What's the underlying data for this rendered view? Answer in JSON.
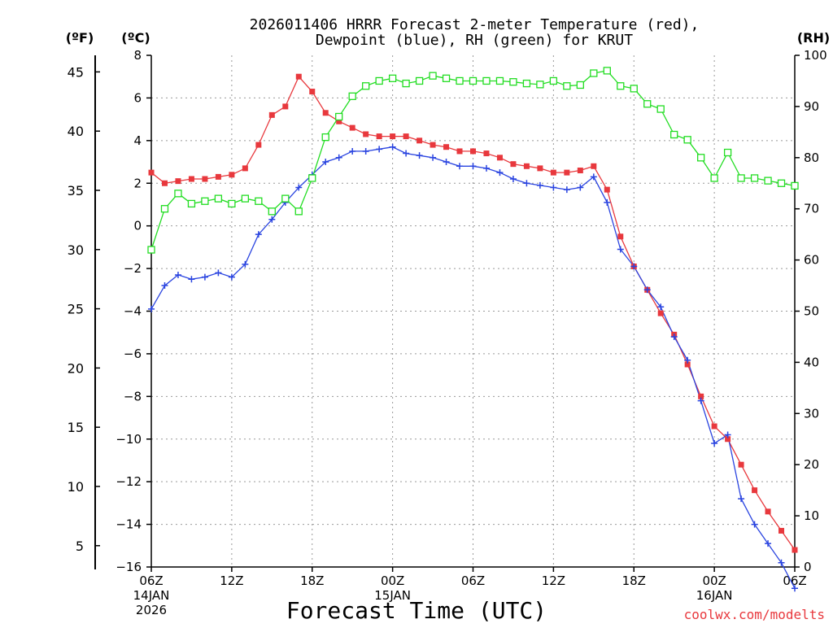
{
  "chart_data": {
    "type": "line",
    "title_line1": "2026011406 HRRR Forecast 2-meter Temperature (red),",
    "title_line2": "Dewpoint (blue), RH (green) for KRUT",
    "xlabel": "Forecast Time (UTC)",
    "credit": "coolwx.com/modelts",
    "axis_unit_f": "(ºF)",
    "axis_unit_c": "(ºC)",
    "axis_unit_rh": "(RH)",
    "x_ticks": [
      "06Z",
      "12Z",
      "18Z",
      "00Z",
      "06Z",
      "12Z",
      "18Z",
      "00Z",
      "06Z"
    ],
    "x_tick_hours": [
      0,
      6,
      12,
      18,
      24,
      30,
      36,
      42,
      48
    ],
    "date_labels": [
      {
        "hour": 0,
        "lines": [
          "14JAN",
          "2026"
        ]
      },
      {
        "hour": 18,
        "lines": [
          "15JAN"
        ]
      },
      {
        "hour": 42,
        "lines": [
          "16JAN"
        ]
      }
    ],
    "xlim": [
      0,
      48
    ],
    "ylim_c": [
      -16,
      8
    ],
    "ylim_rh": [
      0,
      100
    ],
    "yticks_c": [
      8,
      6,
      4,
      2,
      0,
      -2,
      -4,
      -6,
      -8,
      -10,
      -12,
      -14,
      -16
    ],
    "yticks_rh": [
      100,
      90,
      80,
      70,
      60,
      50,
      40,
      30,
      20,
      10,
      0
    ],
    "yticks_f": [
      45,
      40,
      35,
      30,
      25,
      20,
      15,
      10,
      5
    ],
    "series": [
      {
        "name": "Temperature",
        "unit": "C",
        "color": "#e8383d",
        "marker": "filled-square",
        "x": [
          0,
          1,
          2,
          3,
          4,
          5,
          6,
          7,
          8,
          9,
          10,
          11,
          12,
          13,
          14,
          15,
          16,
          17,
          18,
          19,
          20,
          21,
          22,
          23,
          24,
          25,
          26,
          27,
          28,
          29,
          30,
          31,
          32,
          33,
          34,
          35,
          36,
          37,
          38,
          39,
          40,
          41,
          42,
          43,
          44,
          45,
          46,
          47,
          48
        ],
        "values": [
          2.5,
          2.0,
          2.1,
          2.2,
          2.2,
          2.3,
          2.4,
          2.7,
          3.8,
          5.2,
          5.6,
          7.0,
          6.3,
          5.3,
          4.9,
          4.6,
          4.3,
          4.2,
          4.2,
          4.2,
          4.0,
          3.8,
          3.7,
          3.5,
          3.5,
          3.4,
          3.2,
          2.9,
          2.8,
          2.7,
          2.5,
          2.5,
          2.6,
          2.8,
          1.7,
          -0.5,
          -1.9,
          -3.0,
          -4.1,
          -5.1,
          -6.5,
          -8.0,
          -9.4,
          -10.0,
          -11.2,
          -12.4,
          -13.4,
          -14.3,
          -15.2
        ]
      },
      {
        "name": "Dewpoint",
        "unit": "C",
        "color": "#2a44e0",
        "marker": "plus",
        "x": [
          0,
          1,
          2,
          3,
          4,
          5,
          6,
          7,
          8,
          9,
          10,
          11,
          12,
          13,
          14,
          15,
          16,
          17,
          18,
          19,
          20,
          21,
          22,
          23,
          24,
          25,
          26,
          27,
          28,
          29,
          30,
          31,
          32,
          33,
          34,
          35,
          36,
          37,
          38,
          39,
          40,
          41,
          42,
          43,
          44,
          45,
          46,
          47,
          48
        ],
        "values": [
          -3.9,
          -2.8,
          -2.3,
          -2.5,
          -2.4,
          -2.2,
          -2.4,
          -1.8,
          -0.4,
          0.3,
          1.1,
          1.8,
          2.4,
          3.0,
          3.2,
          3.5,
          3.5,
          3.6,
          3.7,
          3.4,
          3.3,
          3.2,
          3.0,
          2.8,
          2.8,
          2.7,
          2.5,
          2.2,
          2.0,
          1.9,
          1.8,
          1.7,
          1.8,
          2.3,
          1.1,
          -1.1,
          -1.9,
          -3.0,
          -3.8,
          -5.2,
          -6.3,
          -8.2,
          -10.2,
          -9.8,
          -12.8,
          -14.0,
          -14.9,
          -15.8,
          -17.0
        ]
      },
      {
        "name": "RH",
        "unit": "%",
        "color": "#22dd22",
        "marker": "open-square",
        "x": [
          0,
          1,
          2,
          3,
          4,
          5,
          6,
          7,
          8,
          9,
          10,
          11,
          12,
          13,
          14,
          15,
          16,
          17,
          18,
          19,
          20,
          21,
          22,
          23,
          24,
          25,
          26,
          27,
          28,
          29,
          30,
          31,
          32,
          33,
          34,
          35,
          36,
          37,
          38,
          39,
          40,
          41,
          42,
          43,
          44,
          45,
          46,
          47,
          48
        ],
        "values": [
          62,
          70,
          73,
          71,
          71.5,
          72,
          71,
          72,
          71.5,
          69.5,
          72,
          69.5,
          76,
          84,
          88,
          92,
          94,
          95,
          95.5,
          94.5,
          95,
          96,
          95.5,
          95,
          95,
          95,
          95,
          94.8,
          94.5,
          94.3,
          95,
          94,
          94.2,
          96.5,
          97,
          94,
          93.5,
          90.5,
          89.5,
          84.5,
          83.5,
          80,
          76,
          81,
          76,
          76,
          75.5,
          75,
          74.5
        ]
      }
    ]
  }
}
